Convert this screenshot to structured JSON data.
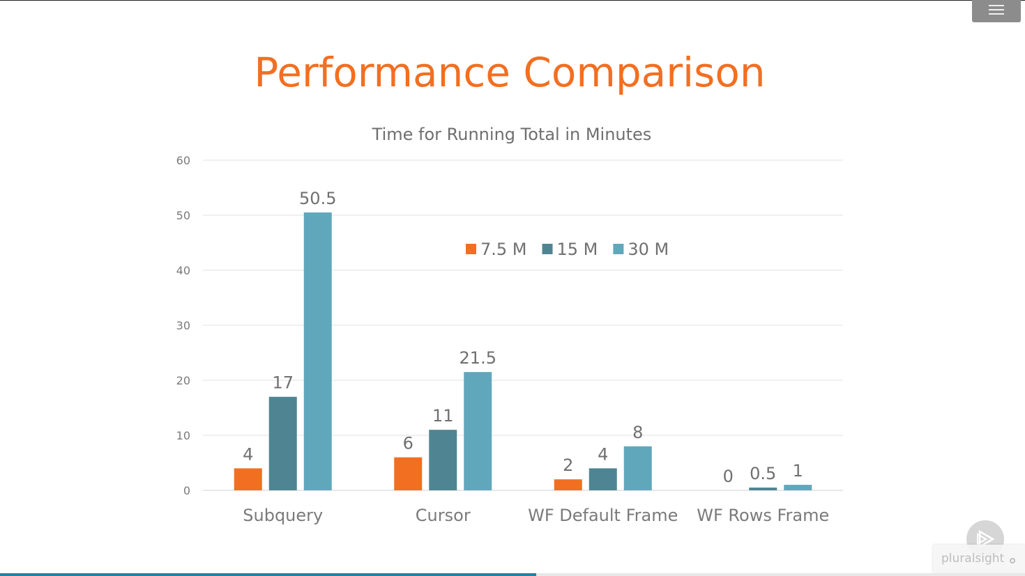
{
  "slide": {
    "title": "Performance Comparison"
  },
  "player": {
    "brand": "pluralsight",
    "progress": 0.523
  },
  "icons": {
    "menu": "hamburger-menu-icon",
    "play": "play-icon",
    "brand_mark": "pluralsight-logo-icon"
  },
  "chart_data": {
    "type": "bar",
    "title": "Time for Running Total in Minutes",
    "xlabel": "",
    "ylabel": "",
    "categories": [
      "Subquery",
      "Cursor",
      "WF Default Frame",
      "WF Rows Frame"
    ],
    "series": [
      {
        "name": "7.5 M",
        "color": "#f26f21",
        "values": [
          4,
          6,
          2,
          0
        ]
      },
      {
        "name": "15 M",
        "color": "#4f8593",
        "values": [
          17,
          11,
          4,
          0.5
        ]
      },
      {
        "name": "30 M",
        "color": "#61a7bc",
        "values": [
          50.5,
          21.5,
          8,
          1
        ]
      }
    ],
    "ylim": [
      0,
      60
    ],
    "yticks": [
      0,
      10,
      20,
      30,
      40,
      50,
      60
    ],
    "grid": true,
    "legend": "top-center",
    "data_labels": true
  }
}
